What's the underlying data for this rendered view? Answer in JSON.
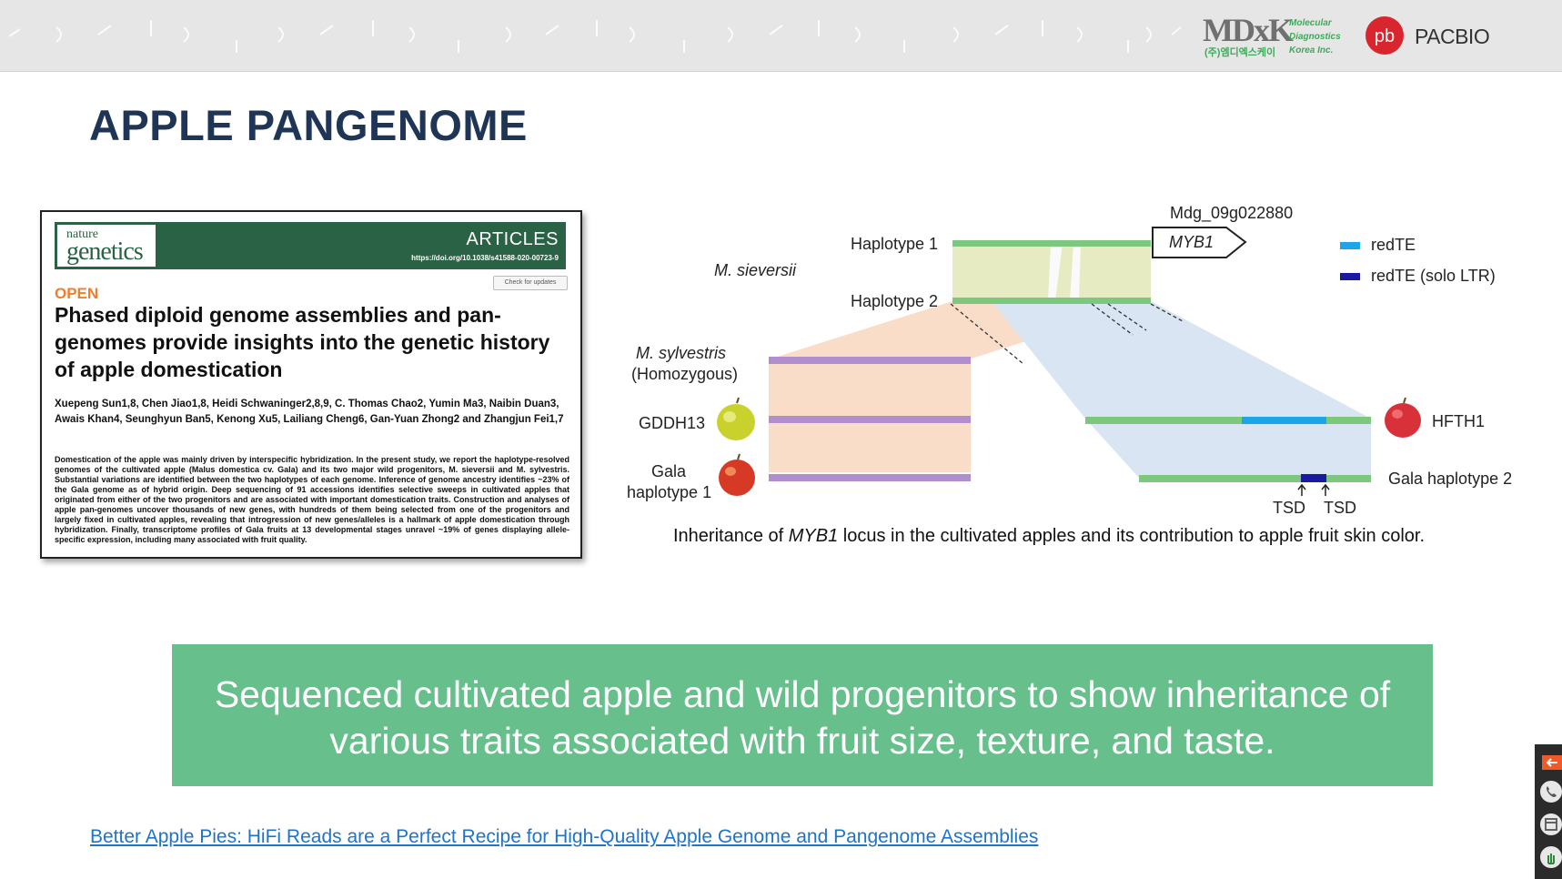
{
  "header": {
    "mdxk_logo": "MDxK",
    "mdxk_korean": "(주)엠디엑스케이",
    "mdxk_tagline": [
      "Molecular",
      "Diagnostics",
      "Korea Inc."
    ],
    "pacbio_logo": "PACBIO",
    "pacbio_mark": "pb"
  },
  "slide": {
    "title": "APPLE PANGENOME"
  },
  "article": {
    "journal_small": "nature",
    "journal_large": "genetics",
    "type": "ARTICLES",
    "doi": "https://doi.org/10.1038/s41588-020-00723-9",
    "check_updates": "Check for updates",
    "open": "OPEN",
    "title": "Phased diploid genome assemblies and pan-genomes provide insights into the genetic history of apple domestication",
    "authors": "Xuepeng Sun1,8, Chen Jiao1,8, Heidi Schwaninger2,8,9, C. Thomas Chao2, Yumin Ma3, Naibin Duan3, Awais Khan4, Seunghyun Ban5, Kenong Xu5, Lailiang Cheng6, Gan-Yuan Zhong2 and Zhangjun Fei1,7",
    "abstract": "Domestication of the apple was mainly driven by interspecific hybridization. In the present study, we report the haplotype-resolved genomes of the cultivated apple (Malus domestica cv. Gala) and its two major wild progenitors, M. sieversii and M. sylvestris. Substantial variations are identified between the two haplotypes of each genome. Inference of genome ancestry identifies ~23% of the Gala genome as of hybrid origin. Deep sequencing of 91 accessions identifies selective sweeps in cultivated apples that originated from either of the two progenitors and are associated with important domestication traits. Construction and analyses of apple pan-genomes uncover thousands of new genes, with hundreds of them being selected from one of the progenitors and largely fixed in cultivated apples, revealing that introgression of new genes/alleles is a hallmark of apple domestication through hybridization. Finally, transcriptome profiles of Gala fruits at 13 developmental stages unravel ~19% of genes displaying allele-specific expression, including many associated with fruit quality."
  },
  "diagram": {
    "gene_id": "Mdg_09g022880",
    "gene_name": "MYB1",
    "haplotype1": "Haplotype 1",
    "haplotype2": "Haplotype 2",
    "m_sieversii": "M. sieversii",
    "m_sylvestris": "M. sylvestris",
    "homozygous": "(Homozygous)",
    "gddh13": "GDDH13",
    "gala": "Gala",
    "gala_hap1": "haplotype 1",
    "hfth1": "HFTH1",
    "gala_hap2": "Gala haplotype 2",
    "tsd1": "TSD",
    "tsd2": "TSD",
    "legend": [
      {
        "label": "redTE",
        "color": "#1ba6e8"
      },
      {
        "label": "redTE (solo LTR)",
        "color": "#1a1aa0"
      }
    ],
    "colors": {
      "chromosome_green": "#7ec77e",
      "chromosome_purple": "#b18fcf",
      "synteny_yellow": "#e7ebc2",
      "synteny_peach": "#f9ddc8",
      "synteny_blue": "#d9e5f3"
    },
    "caption_pre": "Inheritance of ",
    "caption_gene": "MYB1",
    "caption_post": " locus in the cultivated apples and its contribution to apple fruit skin color."
  },
  "banner": {
    "line1": "Sequenced cultivated apple and wild progenitors to show inheritance of",
    "line2": "various traits associated with fruit size, texture, and taste."
  },
  "link": {
    "text": "Better Apple Pies: HiFi Reads are a Perfect Recipe for High-Quality Apple Genome and Pangenome Assemblies"
  },
  "sidedock": {
    "icons": [
      "back-arrow-icon",
      "phone-icon",
      "window-icon",
      "hand-icon"
    ]
  }
}
